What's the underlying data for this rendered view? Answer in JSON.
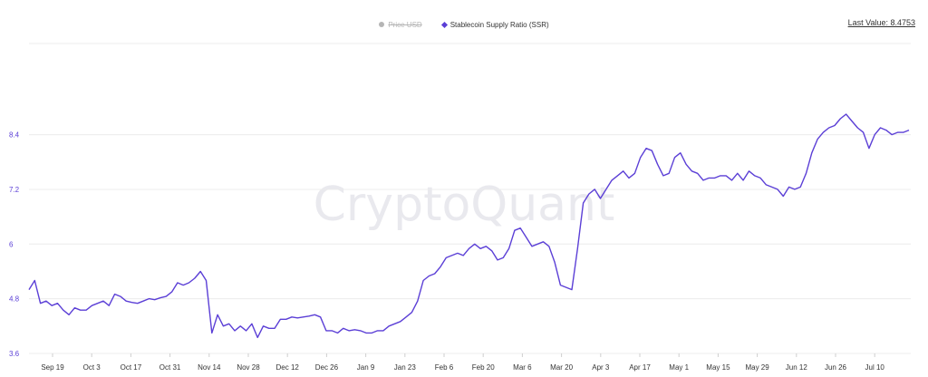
{
  "legend": {
    "items": [
      {
        "label": "Price USD",
        "active": false,
        "color": "#b5b5b5"
      },
      {
        "label": "Stablecoin Supply Ratio (SSR)",
        "active": true,
        "color": "#5b3fd6"
      }
    ]
  },
  "last_value": {
    "text": "Last Value: 8.4753"
  },
  "watermark": "CryptoQuant",
  "chart_data": {
    "type": "line",
    "title": "",
    "xlabel": "",
    "ylabel": "",
    "ylim": [
      3.6,
      10.4
    ],
    "yticks": [
      3.6,
      4.8,
      6,
      7.2,
      8.4
    ],
    "xtick_labels": [
      "Sep 19",
      "Oct 3",
      "Oct 17",
      "Oct 31",
      "Nov 14",
      "Nov 28",
      "Dec 12",
      "Dec 26",
      "Jan 9",
      "Jan 23",
      "Feb 6",
      "Feb 20",
      "Mar 6",
      "Mar 20",
      "Apr 3",
      "Apr 17",
      "May 1",
      "May 15",
      "May 29",
      "Jun 12",
      "Jun 26",
      "Jul 10"
    ],
    "grid": true,
    "series": [
      {
        "name": "Stablecoin Supply Ratio (SSR)",
        "color": "#5b3fd6",
        "values": [
          5.0,
          5.2,
          4.7,
          4.75,
          4.65,
          4.7,
          4.55,
          4.45,
          4.6,
          4.55,
          4.55,
          4.65,
          4.7,
          4.75,
          4.65,
          4.9,
          4.85,
          4.75,
          4.72,
          4.7,
          4.75,
          4.8,
          4.78,
          4.82,
          4.85,
          4.95,
          5.15,
          5.1,
          5.15,
          5.25,
          5.4,
          5.2,
          4.05,
          4.45,
          4.2,
          4.25,
          4.1,
          4.2,
          4.1,
          4.25,
          3.95,
          4.2,
          4.15,
          4.15,
          4.35,
          4.35,
          4.4,
          4.38,
          4.4,
          4.42,
          4.45,
          4.4,
          4.1,
          4.1,
          4.05,
          4.15,
          4.1,
          4.12,
          4.1,
          4.05,
          4.05,
          4.1,
          4.1,
          4.2,
          4.25,
          4.3,
          4.4,
          4.5,
          4.75,
          5.2,
          5.3,
          5.35,
          5.5,
          5.7,
          5.75,
          5.8,
          5.75,
          5.9,
          6.0,
          5.9,
          5.95,
          5.85,
          5.65,
          5.7,
          5.9,
          6.3,
          6.35,
          6.15,
          5.95,
          6.0,
          6.05,
          5.95,
          5.6,
          5.1,
          5.05,
          5.0,
          5.9,
          6.9,
          7.1,
          7.2,
          7.0,
          7.2,
          7.4,
          7.5,
          7.6,
          7.45,
          7.55,
          7.9,
          8.1,
          8.05,
          7.75,
          7.5,
          7.55,
          7.9,
          8.0,
          7.75,
          7.6,
          7.55,
          7.4,
          7.45,
          7.45,
          7.5,
          7.5,
          7.4,
          7.55,
          7.4,
          7.6,
          7.5,
          7.45,
          7.3,
          7.25,
          7.2,
          7.05,
          7.25,
          7.2,
          7.25,
          7.55,
          8.0,
          8.3,
          8.45,
          8.55,
          8.6,
          8.75,
          8.85,
          8.7,
          8.55,
          8.45,
          8.1,
          8.4,
          8.55,
          8.5,
          8.4,
          8.45,
          8.45,
          8.5
        ]
      }
    ]
  }
}
